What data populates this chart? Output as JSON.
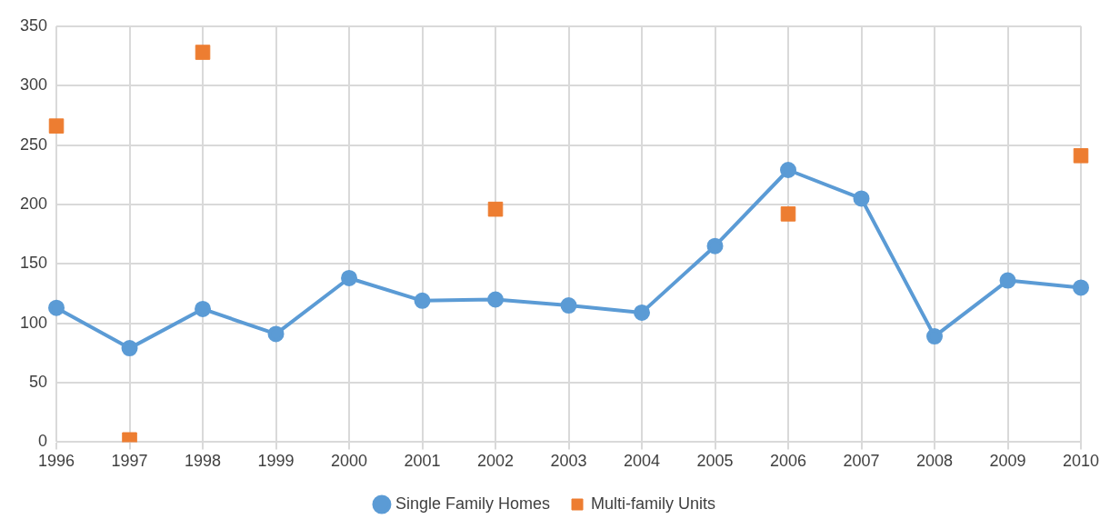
{
  "chart_data": {
    "type": "line",
    "categories": [
      "1996",
      "1997",
      "1998",
      "1999",
      "2000",
      "2001",
      "2002",
      "2003",
      "2004",
      "2005",
      "2006",
      "2007",
      "2008",
      "2009",
      "2010"
    ],
    "ylim": [
      0,
      350
    ],
    "yticks": [
      0,
      50,
      100,
      150,
      200,
      250,
      300,
      350
    ],
    "grid": true,
    "legend": "bottom",
    "series": [
      {
        "name": "Single Family Homes",
        "type": "line",
        "marker": "circle",
        "color": "#5b9bd5",
        "values": [
          113,
          79,
          112,
          91,
          138,
          119,
          120,
          115,
          109,
          165,
          229,
          205,
          89,
          136,
          130
        ]
      },
      {
        "name": "Multi-family Units",
        "type": "scatter",
        "marker": "square",
        "color": "#ed7d31",
        "values": [
          266,
          2,
          328,
          null,
          null,
          null,
          196,
          null,
          null,
          null,
          192,
          null,
          null,
          null,
          241
        ]
      }
    ]
  }
}
